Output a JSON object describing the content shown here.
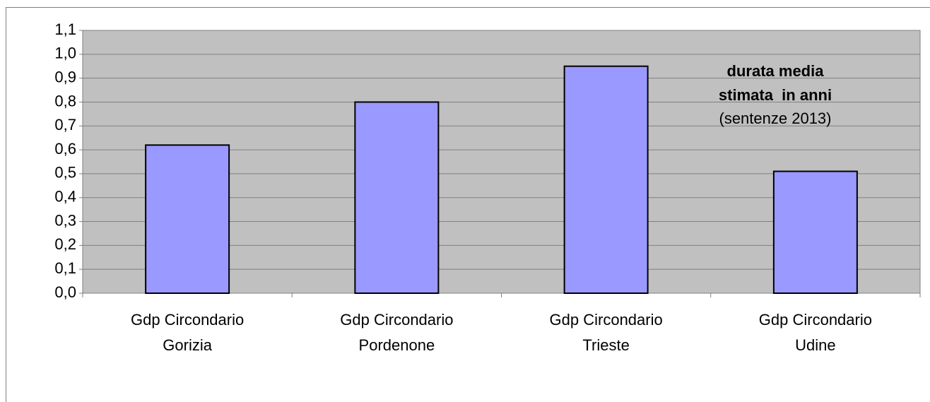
{
  "chart_data": {
    "type": "bar",
    "categories": [
      "Gdp Circondario Gorizia",
      "Gdp Circondario Pordenone",
      "Gdp Circondario Trieste",
      "Gdp Circondario Udine"
    ],
    "values": [
      0.62,
      0.8,
      0.95,
      0.51
    ],
    "color": "#9999ff",
    "ylim": [
      0,
      1.1
    ],
    "yticks": [
      {
        "value": 0,
        "label": "0,0"
      },
      {
        "value": 0.1,
        "label": "0,1"
      },
      {
        "value": 0.2,
        "label": "0,2"
      },
      {
        "value": 0.3,
        "label": "0,3"
      },
      {
        "value": 0.4,
        "label": "0,4"
      },
      {
        "value": 0.5,
        "label": "0,5"
      },
      {
        "value": 0.6,
        "label": "0,6"
      },
      {
        "value": 0.7,
        "label": "0,7"
      },
      {
        "value": 0.8,
        "label": "0,8"
      },
      {
        "value": 0.9,
        "label": "0,9"
      },
      {
        "value": 1.0,
        "label": "1,0"
      },
      {
        "value": 1.1,
        "label": "1,1"
      }
    ],
    "grid": true,
    "annotation": [
      "durata media",
      "stimata  in anni",
      "(sentenze 2013)"
    ]
  }
}
